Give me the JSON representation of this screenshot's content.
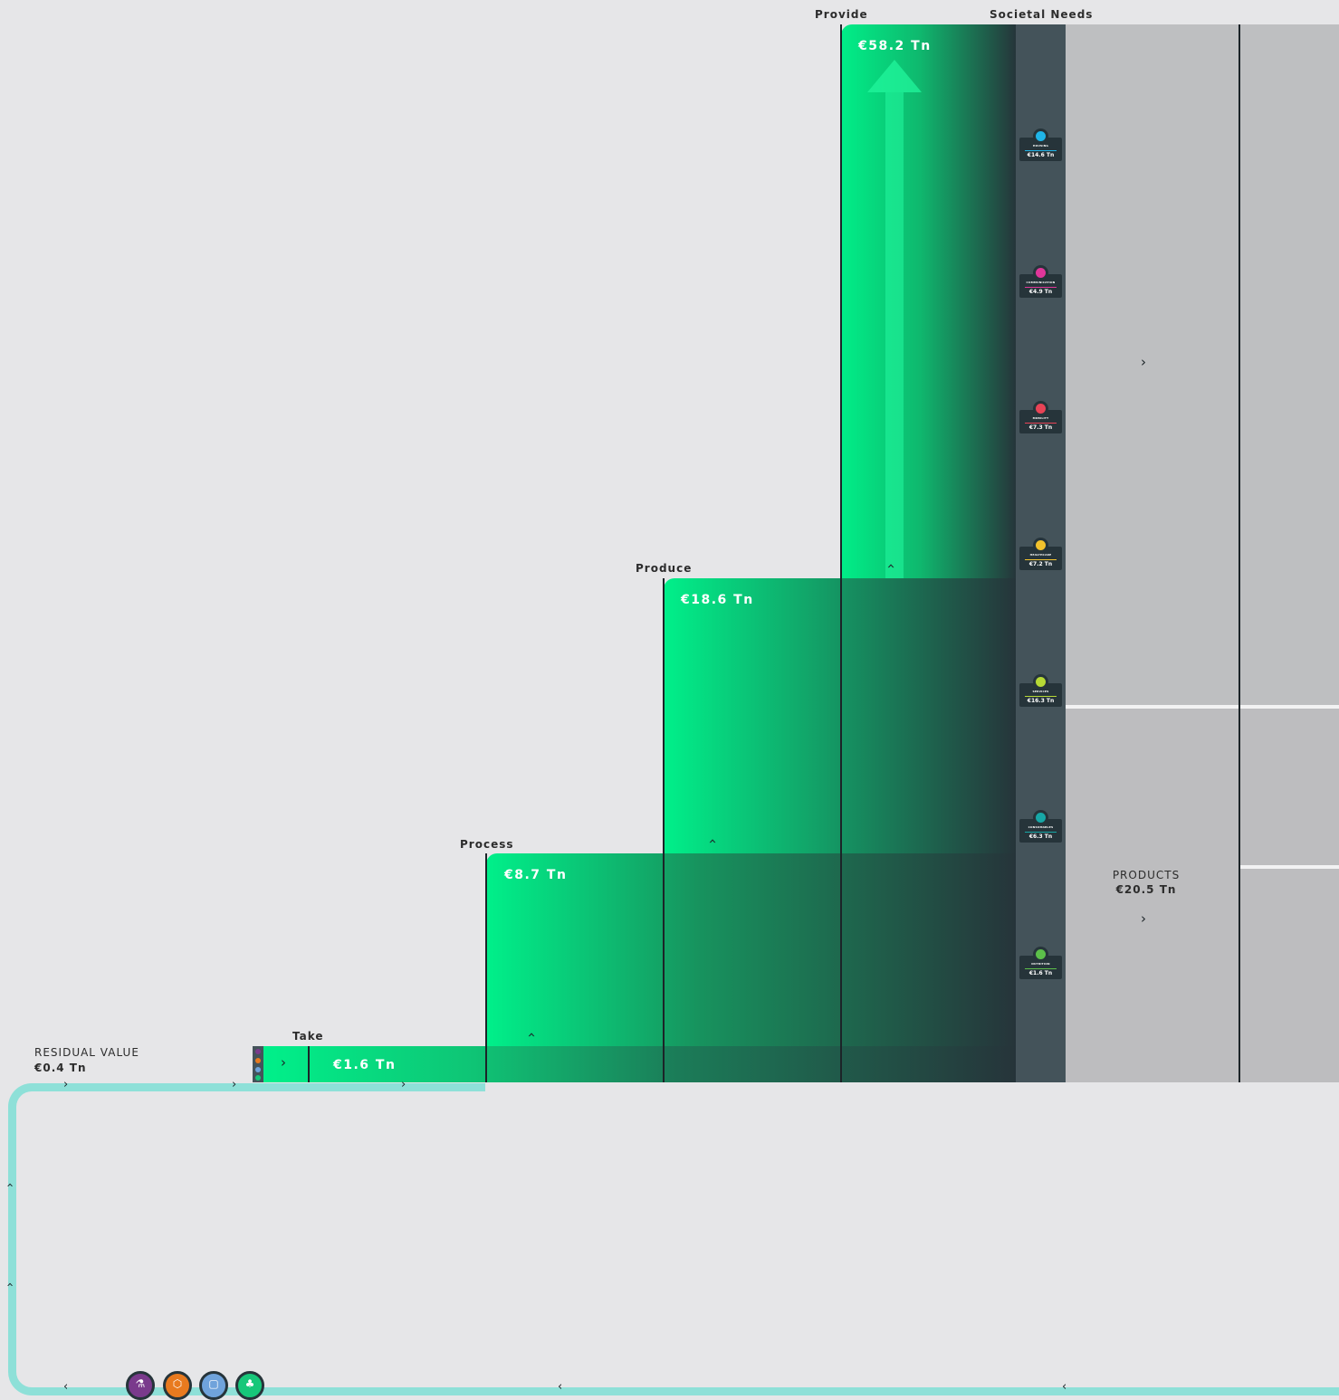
{
  "stages": {
    "take": "Take",
    "process": "Process",
    "produce": "Produce",
    "provide": "Provide",
    "societal_needs": "Societal Needs"
  },
  "values": {
    "take": "€1.6 Tn",
    "process": "€8.7 Tn",
    "produce": "€18.6 Tn",
    "provide": "€58.2 Tn"
  },
  "residual": {
    "label": "RESIDUAL VALUE",
    "value": "€0.4 Tn"
  },
  "products": {
    "label": "PRODUCTS",
    "value": "€20.5 Tn"
  },
  "needs": [
    {
      "name": "HOUSING",
      "value": "€14.6 Tn",
      "color": "#20b5e8"
    },
    {
      "name": "COMMUNICATION",
      "value": "€4.9 Tn",
      "color": "#e0369a"
    },
    {
      "name": "MOBILITY",
      "value": "€7.3 Tn",
      "color": "#e84356"
    },
    {
      "name": "HEALTHCARE",
      "value": "€7.2 Tn",
      "color": "#f2c22d"
    },
    {
      "name": "SERVICES",
      "value": "€16.3 Tn",
      "color": "#b6d935"
    },
    {
      "name": "CONSUMABLES",
      "value": "€6.3 Tn",
      "color": "#17a7a6"
    },
    {
      "name": "NUTRITION",
      "value": "€1.6 Tn",
      "color": "#5cbf4a"
    }
  ],
  "resource_icons": [
    {
      "icon": "flask-icon",
      "color": "#7a3a8c"
    },
    {
      "icon": "hexagon-icon",
      "color": "#e87a1f"
    },
    {
      "icon": "box-icon",
      "color": "#6fa3db"
    },
    {
      "icon": "tree-icon",
      "color": "#17c77a"
    }
  ],
  "colors": {
    "flow_green": "#00f08a",
    "flow_dark": "#26343a",
    "loop": "#8ee0d8",
    "needs_panel": "#44535a",
    "products_panel": "#bdbdbf"
  }
}
